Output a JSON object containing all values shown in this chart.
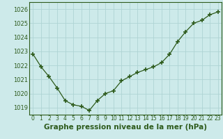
{
  "hours": [
    0,
    1,
    2,
    3,
    4,
    5,
    6,
    7,
    8,
    9,
    10,
    11,
    12,
    13,
    14,
    15,
    16,
    17,
    18,
    19,
    20,
    21,
    22,
    23
  ],
  "pressure": [
    1022.8,
    1021.9,
    1021.2,
    1020.4,
    1019.5,
    1019.2,
    1019.1,
    1018.8,
    1019.5,
    1020.0,
    1020.2,
    1020.9,
    1021.2,
    1021.5,
    1021.7,
    1021.9,
    1022.2,
    1022.8,
    1023.7,
    1024.4,
    1025.0,
    1025.2,
    1025.6,
    1025.8
  ],
  "line_color": "#2d5a1b",
  "bg_color": "#cdeaea",
  "grid_color": "#aed4d4",
  "xlabel": "Graphe pression niveau de la mer (hPa)",
  "ylim_min": 1018.5,
  "ylim_max": 1026.5,
  "yticks": [
    1019,
    1020,
    1021,
    1022,
    1023,
    1024,
    1025,
    1026
  ],
  "xlabel_fontsize": 7.5,
  "tick_fontsize": 6.0,
  "marker": "+",
  "marker_size": 4,
  "linewidth": 0.9
}
